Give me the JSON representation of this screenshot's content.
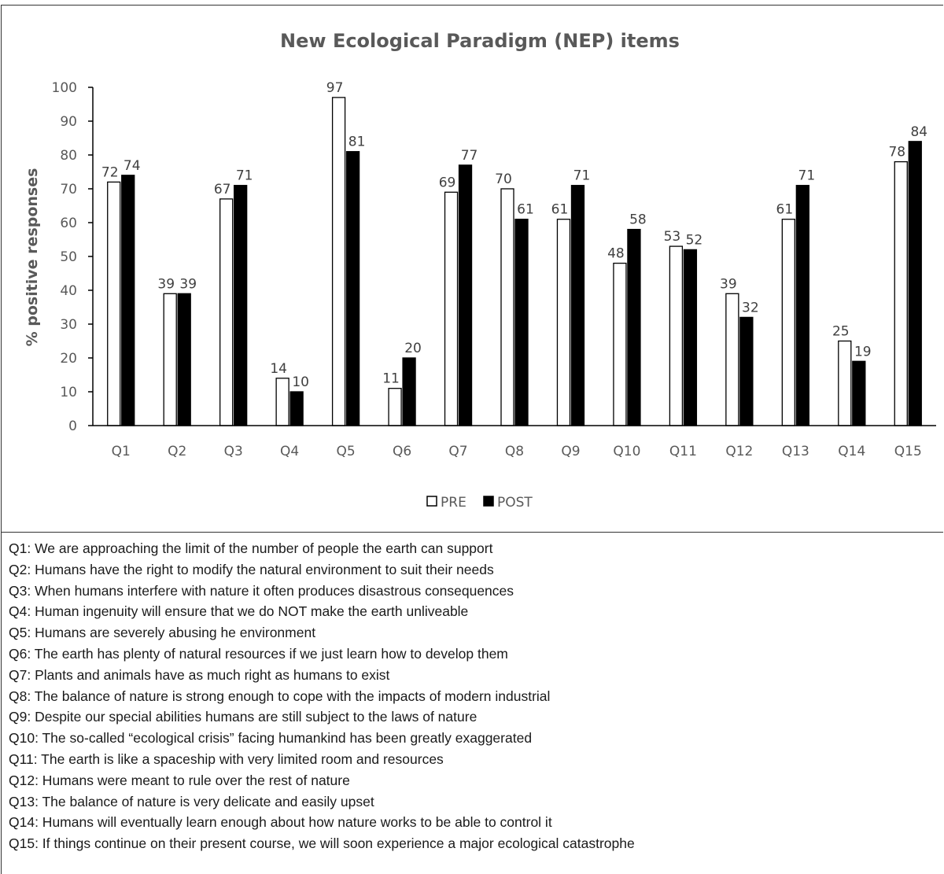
{
  "chart_data": {
    "type": "bar",
    "title": "New Ecological Paradigm (NEP) items",
    "ylabel": "% positive responses",
    "xlabel": "",
    "ylim": [
      0,
      100
    ],
    "yticks": [
      "0",
      "10",
      "20",
      "30",
      "40",
      "50",
      "60",
      "70",
      "80",
      "90",
      "100"
    ],
    "categories": [
      "Q1",
      "Q2",
      "Q3",
      "Q4",
      "Q5",
      "Q6",
      "Q7",
      "Q8",
      "Q9",
      "Q10",
      "Q11",
      "Q12",
      "Q13",
      "Q14",
      "Q15"
    ],
    "series": [
      {
        "name": "PRE",
        "color": "#ffffff",
        "values": [
          72,
          39,
          67,
          14,
          97,
          11,
          69,
          70,
          61,
          48,
          53,
          39,
          61,
          25,
          78
        ]
      },
      {
        "name": "POST",
        "color": "#000000",
        "values": [
          74,
          39,
          71,
          10,
          81,
          20,
          77,
          61,
          71,
          58,
          52,
          32,
          71,
          19,
          84
        ]
      }
    ],
    "grid": false,
    "data_labels": true,
    "legend_position": "bottom"
  },
  "footnotes": [
    "Q1: We are approaching the limit of the number of people the earth can support",
    "Q2: Humans have the right to modify the natural environment to suit their needs",
    "Q3: When humans interfere with nature it often produces disastrous consequences",
    "Q4: Human ingenuity will ensure that we do NOT make the earth unliveable",
    "Q5: Humans are severely abusing he environment",
    "Q6: The earth has plenty of natural resources if we just learn how to develop them",
    "Q7: Plants and animals have as much right as humans to exist",
    "Q8: The balance of nature is strong enough to cope with the impacts of modern industrial",
    "Q9: Despite our special abilities humans are still subject to the laws of nature",
    "Q10: The so-called “ecological crisis” facing humankind has been greatly exaggerated",
    "Q11: The earth is like a spaceship with very limited room and resources",
    "Q12: Humans were meant to rule over the rest of nature",
    "Q13: The balance of nature is very delicate and easily upset",
    "Q14: Humans will eventually learn enough about how nature works to be able to control it",
    "Q15: If things continue on their present course, we will soon experience a major ecological catastrophe"
  ]
}
